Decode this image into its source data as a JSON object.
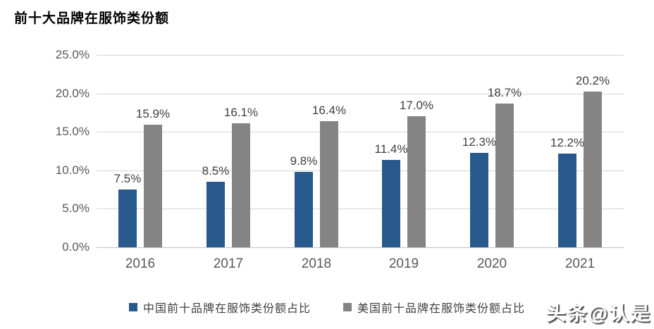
{
  "title": "前十大品牌在服饰类份额",
  "watermark": "头条@认是",
  "chart_data": {
    "type": "bar",
    "title": "前十大品牌在服饰类份额",
    "categories": [
      "2016",
      "2017",
      "2018",
      "2019",
      "2020",
      "2021"
    ],
    "series": [
      {
        "name": "中国前十品牌在服饰类份额占比",
        "color": "#27598C",
        "values": [
          7.5,
          8.5,
          9.8,
          11.4,
          12.3,
          12.2
        ],
        "labels": [
          "7.5%",
          "8.5%",
          "9.8%",
          "11.4%",
          "12.3%",
          "12.2%"
        ]
      },
      {
        "name": "美国前十品牌在服饰类份额占比",
        "color": "#848484",
        "values": [
          15.9,
          16.1,
          16.4,
          17.0,
          18.7,
          20.2
        ],
        "labels": [
          "15.9%",
          "16.1%",
          "16.4%",
          "17.0%",
          "18.7%",
          "20.2%"
        ]
      }
    ],
    "y_ticks": [
      "0.0%",
      "5.0%",
      "10.0%",
      "15.0%",
      "20.0%",
      "25.0%"
    ],
    "ylim": [
      0,
      25
    ],
    "xlabel": "",
    "ylabel": "",
    "grid": true,
    "data_labels": true,
    "legend_position": "bottom",
    "colors": {
      "gridline": "#d6d6d6",
      "axis_line": "#bfbfbf",
      "tick_text": "#595959",
      "label_text": "#3f3f3f"
    }
  }
}
